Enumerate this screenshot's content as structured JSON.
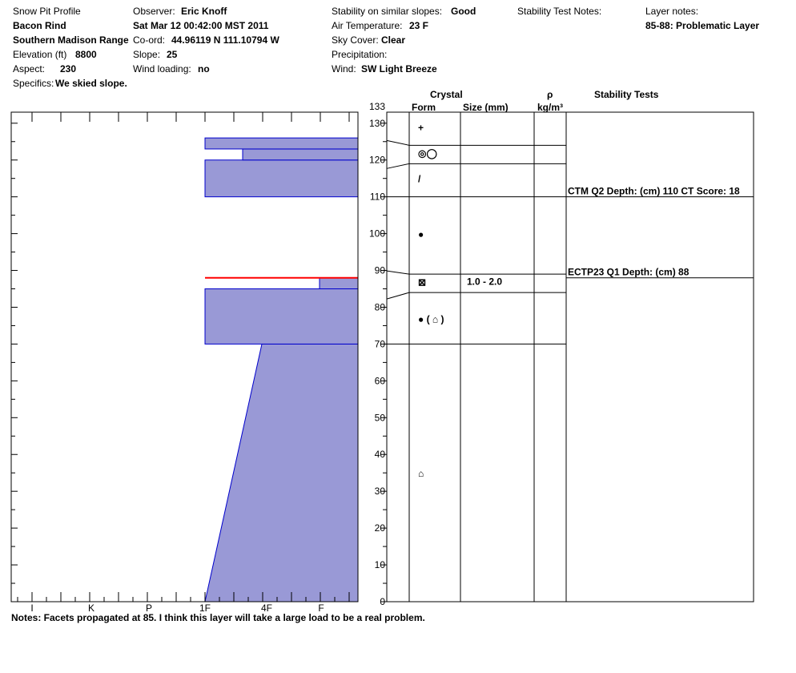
{
  "header": {
    "title": "Snow Pit Profile",
    "location": "Bacon Rind",
    "range": "Southern Madison Range",
    "elevation_label": "Elevation (ft)",
    "elevation": "8800",
    "aspect_label": "Aspect:",
    "aspect": "230",
    "specifics_label": "Specifics:",
    "specifics": "We skied slope.",
    "observer_label": "Observer:",
    "observer": "Eric Knoff",
    "date": "Sat Mar 12 00:42:00 MST 2011",
    "coord_label": "Co-ord:",
    "coord": "44.96119 N 111.10794 W",
    "slope_label": "Slope:",
    "slope": "25",
    "wind_loading_label": "Wind loading:",
    "wind_loading": "no",
    "stability_label": "Stability on similar slopes:",
    "stability": "Good",
    "air_temp_label": "Air Temperature:",
    "air_temp": "23 F",
    "sky_label": "Sky Cover:",
    "sky": "Clear",
    "precip_label": "Precipitation:",
    "wind_label": "Wind:",
    "wind": "SW Light Breeze",
    "stability_notes_label": "Stability Test Notes:",
    "layer_notes_label": "Layer notes:",
    "layer_notes": "85-88: Problematic Layer"
  },
  "columns": {
    "crystal": "Crystal",
    "form": "Form",
    "size": "Size (mm)",
    "rho": "ρ",
    "density_unit": "kg/m³",
    "stability_tests": "Stability Tests"
  },
  "notes": "Notes:  Facets propagated at 85.  I think this layer will take a large load to be a real problem.",
  "colors": {
    "fill": "#9999d6",
    "outline": "#0000cc",
    "problem_line": "#ff0000"
  },
  "chart_data": {
    "type": "area",
    "title": "",
    "xlabel": "",
    "ylabel": "",
    "hardness_scale": [
      "I",
      "K",
      "P",
      "1F",
      "4F",
      "F"
    ],
    "hardness_reversed": true,
    "ylim": [
      0,
      133
    ],
    "yticks": [
      0,
      10,
      20,
      30,
      40,
      50,
      60,
      70,
      80,
      90,
      100,
      110,
      120,
      130,
      133
    ],
    "hardness_layers": [
      {
        "bottom": 0,
        "top": 70,
        "hardness_bottom": "1F",
        "hardness_top": "4F-"
      },
      {
        "bottom": 70,
        "top": 85,
        "hardness": "1F"
      },
      {
        "bottom": 85,
        "top": 88,
        "hardness": "F-"
      },
      {
        "bottom": 110,
        "top": 120,
        "hardness": "1F"
      },
      {
        "bottom": 120,
        "top": 123,
        "hardness": "1F+"
      },
      {
        "bottom": 123,
        "top": 126,
        "hardness": "1F"
      }
    ],
    "problem_layer_depth": 88,
    "layer_boundaries": [
      70,
      84,
      89,
      110,
      119,
      124
    ],
    "crystal_forms": [
      {
        "depth": 129,
        "symbol": "+"
      },
      {
        "depth": 122,
        "symbol": "◎◯"
      },
      {
        "depth": 115,
        "symbol": "/"
      },
      {
        "depth": 100,
        "symbol": "●"
      },
      {
        "depth": 87,
        "symbol": "⊠",
        "size": "1.0 - 2.0"
      },
      {
        "depth": 77,
        "symbol": "● ( ⌂ )"
      },
      {
        "depth": 35,
        "symbol": "⌂"
      }
    ],
    "stability_tests": [
      {
        "depth": 110,
        "text": "CTM Q2 Depth: (cm) 110 CT Score: 18"
      },
      {
        "depth": 88,
        "text": "ECTP23 Q1 Depth: (cm) 88"
      }
    ]
  }
}
